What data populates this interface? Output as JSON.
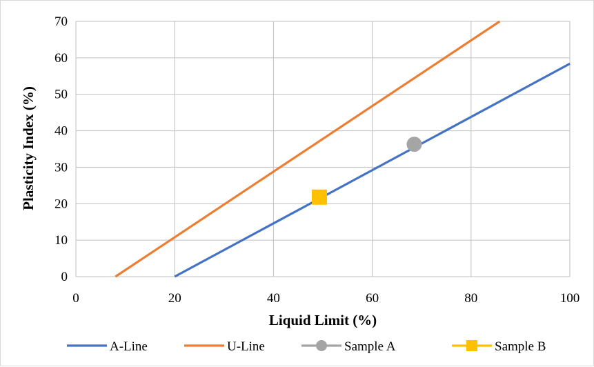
{
  "chart_data": {
    "type": "line",
    "title": "",
    "xlabel": "Liquid Limit (%)",
    "ylabel": "Plasticity Index (%)",
    "xlim": [
      0,
      100
    ],
    "ylim": [
      0,
      70
    ],
    "x_ticks": [
      "0",
      "20",
      "40",
      "60",
      "80",
      "100"
    ],
    "y_ticks": [
      "0",
      "10",
      "20",
      "30",
      "40",
      "50",
      "60",
      "70"
    ],
    "grid": true,
    "legend_position": "bottom",
    "series": [
      {
        "name": "A-Line",
        "kind": "line",
        "color": "#4472C4",
        "x": [
          20,
          100
        ],
        "y": [
          0,
          58.4
        ]
      },
      {
        "name": "U-Line",
        "kind": "line",
        "color": "#ED7D31",
        "x": [
          8,
          85.8
        ],
        "y": [
          0,
          70
        ]
      },
      {
        "name": "Sample A",
        "kind": "marker",
        "marker": "circle",
        "color": "#A5A5A5",
        "x": [
          68.5
        ],
        "y": [
          36.3
        ]
      },
      {
        "name": "Sample B",
        "kind": "marker",
        "marker": "square",
        "color": "#FFC000",
        "x": [
          49.3
        ],
        "y": [
          21.8
        ]
      }
    ]
  }
}
